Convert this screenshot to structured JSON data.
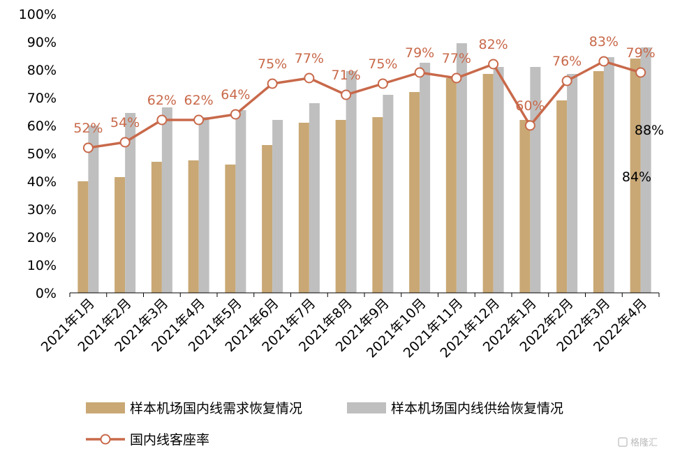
{
  "chart_data": {
    "type": "bar",
    "categories": [
      "2021年1月",
      "2021年2月",
      "2021年3月",
      "2021年4月",
      "2021年5月",
      "2021年6月",
      "2021年7月",
      "2021年8月",
      "2021年9月",
      "2021年10月",
      "2021年11月",
      "2021年12月",
      "2022年1月",
      "2022年2月",
      "2022年3月",
      "2022年4月"
    ],
    "ylim": [
      0,
      100
    ],
    "yticks": [
      "0%",
      "10%",
      "20%",
      "30%",
      "40%",
      "50%",
      "60%",
      "70%",
      "80%",
      "90%",
      "100%"
    ],
    "grid": false,
    "legend_position": "bottom",
    "series": [
      {
        "name": "样本机场国内线需求恢复情况",
        "kind": "bar",
        "color": "#C9A875",
        "values": [
          40,
          41.5,
          47,
          47.5,
          46,
          53,
          61,
          62,
          63,
          72,
          77,
          78.5,
          62,
          69,
          79.5,
          84
        ]
      },
      {
        "name": "样本机场国内线供给恢复情况",
        "kind": "bar",
        "color": "#BFBFBF",
        "values": [
          60,
          64.5,
          66.5,
          63,
          65.5,
          62,
          68,
          79.5,
          71,
          82.5,
          89.5,
          81,
          81,
          78.5,
          84.5,
          88
        ]
      },
      {
        "name": "国内线客座率",
        "kind": "line",
        "color": "#C8694A",
        "values": [
          52,
          54,
          62,
          62,
          64,
          75,
          77,
          71,
          75,
          79,
          77,
          82,
          60,
          76,
          83,
          79
        ],
        "labels": [
          "52%",
          "54%",
          "62%",
          "62%",
          "64%",
          "75%",
          "77%",
          "71%",
          "75%",
          "79%",
          "77%",
          "82%",
          "60%",
          "76%",
          "83%",
          "79%"
        ]
      }
    ],
    "annotations": [
      {
        "text": "88%"
      },
      {
        "text": "84%"
      }
    ]
  },
  "watermark": "格隆汇"
}
